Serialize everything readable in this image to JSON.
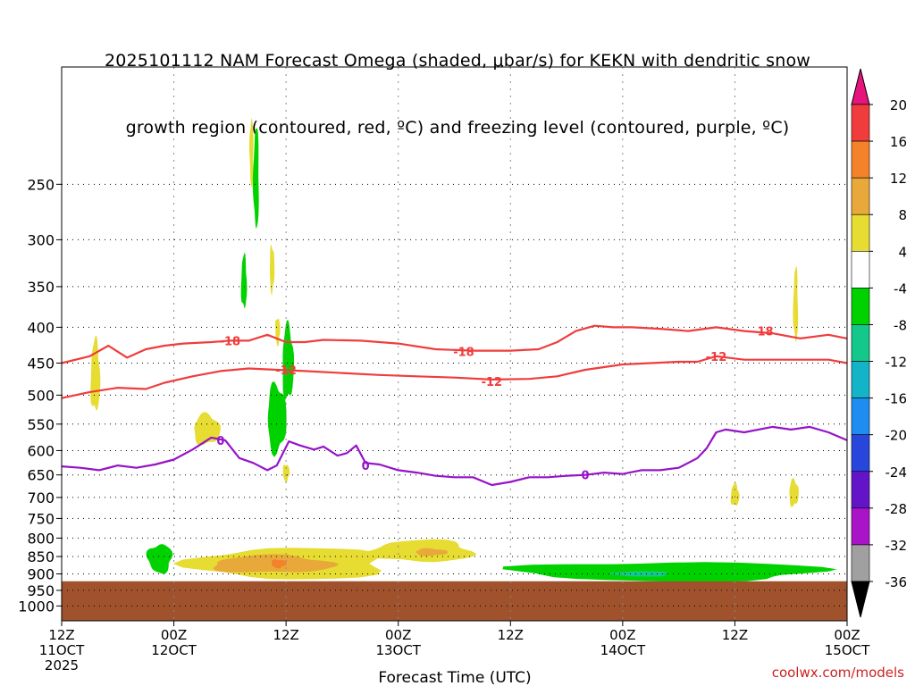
{
  "title": {
    "line1": "2025101112 NAM Forecast Omega (shaded, μbar/s) for KEKN with dendritic snow",
    "line2": "growth region (contoured, red, ºC) and freezing level (contoured, purple, ºC)"
  },
  "watermark": "coolwx.com/models",
  "chart_data": {
    "type": "heatmap",
    "title": "2025101112 NAM Forecast Omega (shaded, μbar/s) for KEKN with dendritic snow growth region (contoured, red, ºC) and freezing level (contoured, purple, ºC)",
    "xlabel": "Forecast Time (UTC)",
    "ylabel": "",
    "x_unit": "hours since 2025-10-11 12Z",
    "xlim": [
      0,
      84
    ],
    "x_ticks": [
      {
        "x": 0,
        "line1": "12Z",
        "line2": "11OCT",
        "line3": "2025"
      },
      {
        "x": 12,
        "line1": "00Z",
        "line2": "12OCT",
        "line3": ""
      },
      {
        "x": 24,
        "line1": "12Z",
        "line2": "",
        "line3": ""
      },
      {
        "x": 36,
        "line1": "00Z",
        "line2": "13OCT",
        "line3": ""
      },
      {
        "x": 48,
        "line1": "12Z",
        "line2": "",
        "line3": ""
      },
      {
        "x": 60,
        "line1": "00Z",
        "line2": "14OCT",
        "line3": ""
      },
      {
        "x": 72,
        "line1": "12Z",
        "line2": "",
        "line3": ""
      },
      {
        "x": 84,
        "line1": "00Z",
        "line2": "15OCT",
        "line3": ""
      }
    ],
    "y_unit": "hPa",
    "ylim": [
      1050,
      170
    ],
    "y_ticks": [
      250,
      300,
      350,
      400,
      450,
      500,
      550,
      600,
      650,
      700,
      750,
      800,
      850,
      900,
      950,
      1000
    ],
    "grid": true,
    "surface_pressure_hPa": 922,
    "surface_color": "#a0522d",
    "colorbar": {
      "labels": [
        "20",
        "16",
        "12",
        "8",
        "4",
        "-4",
        "-8",
        "-12",
        "-16",
        "-20",
        "-24",
        "-28",
        "-32",
        "-36"
      ],
      "bins": [
        {
          "range": "16 to 20",
          "color": "#f03c3c"
        },
        {
          "range": "12 to 16",
          "color": "#f4822a"
        },
        {
          "range": "8 to 12",
          "color": "#e8a83a"
        },
        {
          "range": "4 to 8",
          "color": "#e6dc32"
        },
        {
          "range": "-4 to 4",
          "color": "#ffffff"
        },
        {
          "range": "-8 to -4",
          "color": "#00d200"
        },
        {
          "range": "-12 to -8",
          "color": "#14c88c"
        },
        {
          "range": "-16 to -12",
          "color": "#14b4c8"
        },
        {
          "range": "-20 to -16",
          "color": "#1e8cf0"
        },
        {
          "range": "-24 to -20",
          "color": "#2846dc"
        },
        {
          "range": "-28 to -24",
          "color": "#6414c8"
        },
        {
          "range": "-32 to -28",
          "color": "#aa14c8"
        },
        {
          "range": "-36 to -32",
          "color": "#a0a0a0"
        }
      ],
      "top_arrow_color": "#e6147c",
      "bottom_arrow_color": "#000000"
    },
    "omega_regions": [
      {
        "color": "#e6dc32",
        "x_center": 3.6,
        "p_center": 470,
        "half_x": 0.5,
        "half_p": 55,
        "offset": [
          0.3,
          10
        ]
      },
      {
        "color": "#e6dc32",
        "x_center": 15.5,
        "p_center": 560,
        "half_x": 1.4,
        "half_p": 28,
        "offset": [
          0.5,
          5
        ]
      },
      {
        "color": "#e6dc32",
        "x_center": 22.5,
        "p_center": 330,
        "half_x": 0.25,
        "half_p": 25,
        "offset": [
          0,
          0
        ]
      },
      {
        "color": "#e6dc32",
        "x_center": 23.1,
        "p_center": 405,
        "half_x": 0.25,
        "half_p": 18,
        "offset": [
          0,
          0
        ]
      },
      {
        "color": "#e6dc32",
        "x_center": 20.3,
        "p_center": 225,
        "half_x": 0.2,
        "half_p": 25,
        "offset": [
          0,
          0
        ]
      },
      {
        "color": "#00d200",
        "x_center": 20.8,
        "p_center": 245,
        "half_x": 0.3,
        "half_p": 40,
        "offset": [
          0,
          0
        ]
      },
      {
        "color": "#00d200",
        "x_center": 19.5,
        "p_center": 345,
        "half_x": 0.3,
        "half_p": 30,
        "offset": [
          0,
          0
        ]
      },
      {
        "color": "#00d200",
        "x_center": 24.2,
        "p_center": 450,
        "half_x": 0.6,
        "half_p": 55,
        "offset": [
          0,
          0
        ]
      },
      {
        "color": "#00d200",
        "x_center": 23.0,
        "p_center": 540,
        "half_x": 1.0,
        "half_p": 60,
        "offset": [
          0.3,
          0
        ]
      },
      {
        "color": "#e6dc32",
        "x_center": 24.0,
        "p_center": 645,
        "half_x": 0.35,
        "half_p": 18,
        "offset": [
          0,
          0
        ]
      },
      {
        "color": "#00d200",
        "x_center": 10.5,
        "p_center": 855,
        "half_x": 1.3,
        "half_p": 40,
        "offset": [
          0.2,
          5
        ]
      },
      {
        "color": "#e6dc32",
        "x_center": 24.5,
        "p_center": 870,
        "half_x": 10.5,
        "half_p": 45,
        "offset": [
          0.5,
          5
        ]
      },
      {
        "color": "#e6dc32",
        "x_center": 38.5,
        "p_center": 835,
        "half_x": 5.5,
        "half_p": 30,
        "offset": [
          0.3,
          5
        ]
      },
      {
        "color": "#e8a83a",
        "x_center": 22.5,
        "p_center": 872,
        "half_x": 6.5,
        "half_p": 25,
        "offset": [
          0.3,
          0
        ]
      },
      {
        "color": "#e8a83a",
        "x_center": 39.5,
        "p_center": 838,
        "half_x": 1.7,
        "half_p": 10,
        "offset": [
          0,
          0
        ]
      },
      {
        "color": "#f4822a",
        "x_center": 23.2,
        "p_center": 870,
        "half_x": 0.8,
        "half_p": 12,
        "offset": [
          0,
          0
        ]
      },
      {
        "color": "#00d200",
        "x_center": 65.0,
        "p_center": 893,
        "half_x": 16.5,
        "half_p": 28,
        "offset": [
          0.3,
          0
        ]
      },
      {
        "color": "#14c88c",
        "x_center": 62.0,
        "p_center": 900,
        "half_x": 3.0,
        "half_p": 8,
        "offset": [
          0,
          0
        ]
      },
      {
        "color": "#e6dc32",
        "x_center": 78.5,
        "p_center": 372,
        "half_x": 0.25,
        "half_p": 45,
        "offset": [
          0,
          0
        ]
      },
      {
        "color": "#e6dc32",
        "x_center": 72.0,
        "p_center": 695,
        "half_x": 0.45,
        "half_p": 25,
        "offset": [
          0,
          0
        ]
      },
      {
        "color": "#e6dc32",
        "x_center": 78.3,
        "p_center": 690,
        "half_x": 0.5,
        "half_p": 30,
        "offset": [
          0,
          0
        ]
      }
    ],
    "series": [
      {
        "name": "-18",
        "color": "#f03c3c",
        "label": "-18",
        "label_points": [
          [
            18,
            418
          ],
          [
            43,
            433
          ],
          [
            75,
            405
          ]
        ],
        "x": [
          0,
          3,
          5,
          7,
          9,
          11,
          13,
          16,
          18,
          20,
          22,
          24,
          26,
          28,
          32,
          36,
          40,
          44,
          48,
          51,
          53,
          55,
          57,
          59,
          61,
          64,
          67,
          70,
          73,
          76,
          79,
          82,
          84
        ],
        "y": [
          450,
          440,
          425,
          442,
          430,
          425,
          422,
          420,
          418,
          418,
          410,
          420,
          420,
          417,
          418,
          422,
          430,
          432,
          432,
          430,
          420,
          405,
          398,
          400,
          400,
          402,
          405,
          400,
          405,
          408,
          415,
          410,
          415
        ]
      },
      {
        "name": "-12",
        "color": "#f03c3c",
        "label": "-12",
        "label_points": [
          [
            24,
            460
          ],
          [
            46,
            478
          ],
          [
            70,
            440
          ]
        ],
        "x": [
          0,
          3,
          6,
          9,
          11,
          14,
          17,
          20,
          23,
          26,
          30,
          34,
          38,
          42,
          46,
          50,
          53,
          56,
          60,
          63,
          66,
          68,
          70,
          73,
          76,
          79,
          82,
          84
        ],
        "y": [
          505,
          495,
          488,
          490,
          480,
          470,
          462,
          458,
          460,
          462,
          465,
          468,
          470,
          472,
          475,
          474,
          470,
          460,
          452,
          450,
          448,
          448,
          440,
          445,
          445,
          445,
          445,
          450
        ]
      },
      {
        "name": "0",
        "color": "#9614c8",
        "label": "0",
        "label_points": [
          [
            17,
            580
          ],
          [
            32.5,
            630
          ],
          [
            56,
            650
          ]
        ],
        "x": [
          0,
          2,
          4,
          6,
          8,
          10,
          12,
          14,
          16,
          17.5,
          19,
          20.5,
          22,
          23,
          24.3,
          25.5,
          27,
          28,
          29.5,
          30.5,
          31.5,
          32.5,
          34,
          36,
          38,
          40,
          42,
          44,
          46,
          48,
          50,
          52,
          54,
          56,
          58,
          60,
          62,
          64,
          66,
          68,
          69,
          70,
          71,
          73,
          76,
          78,
          80,
          82,
          84
        ],
        "y": [
          632,
          635,
          640,
          630,
          635,
          628,
          618,
          598,
          575,
          580,
          615,
          625,
          640,
          630,
          582,
          590,
          598,
          592,
          610,
          605,
          590,
          625,
          628,
          640,
          645,
          652,
          655,
          655,
          672,
          665,
          655,
          655,
          652,
          650,
          645,
          648,
          640,
          640,
          635,
          615,
          595,
          565,
          560,
          565,
          555,
          560,
          555,
          565,
          580
        ]
      }
    ]
  }
}
